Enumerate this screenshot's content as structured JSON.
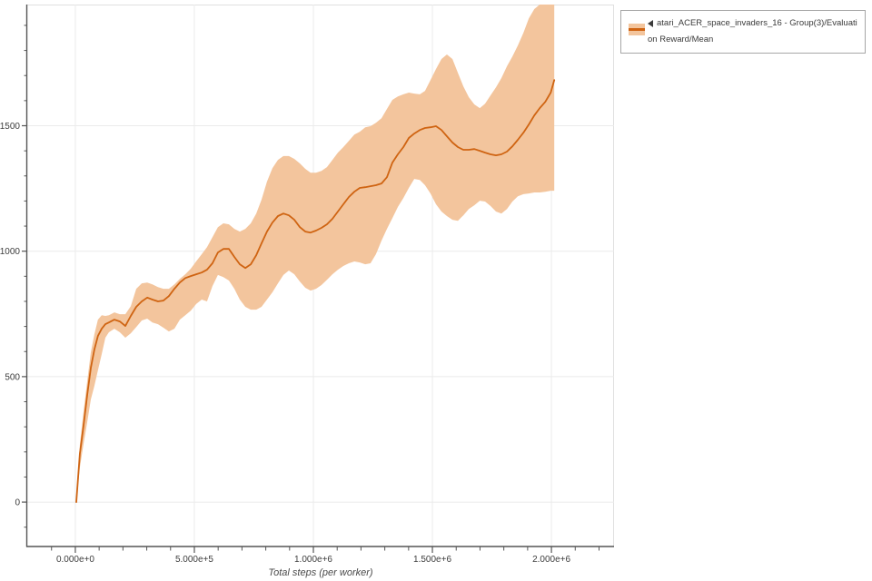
{
  "legend": {
    "lines": [
      "atari_ACER_space_invaders_16 - Group(3)/Evaluati",
      "on Reward/Mean"
    ],
    "marker_icon": "left-triangle"
  },
  "colors": {
    "line": "#cf6412",
    "band": "#f3c59d",
    "grid": "#ebebeb",
    "plot_border": "#e0e0e0",
    "axis_spine": "#555555",
    "tick_text": "#3c3c3c",
    "legend_border": "#a6a6a6"
  },
  "chart_data": {
    "type": "line",
    "title": "",
    "xlabel": "Total steps (per worker)",
    "ylabel": "",
    "grid": true,
    "legend_position": "top-right",
    "xlim": [
      -202000,
      2263000
    ],
    "ylim": [
      -177,
      1983
    ],
    "x_ticks": [
      0,
      500000,
      1000000,
      1500000,
      2000000
    ],
    "x_tick_labels": [
      "0.000e+0",
      "5.000e+5",
      "1.000e+6",
      "1.500e+6",
      "2.000e+6"
    ],
    "x_minor_ticks": [
      -100000,
      100000,
      200000,
      300000,
      400000,
      600000,
      700000,
      800000,
      900000,
      1100000,
      1200000,
      1300000,
      1400000,
      1600000,
      1700000,
      1800000,
      1900000,
      2100000,
      2200000
    ],
    "y_ticks": [
      0,
      500,
      1000,
      1500
    ],
    "y_tick_labels": [
      "0",
      "500",
      "1000",
      "1500"
    ],
    "y_minor_ticks": [
      -100,
      100,
      200,
      300,
      400,
      600,
      700,
      800,
      900,
      1100,
      1200,
      1300,
      1400,
      1600,
      1700,
      1800,
      1900
    ],
    "series": [
      {
        "name": "atari_ACER_space_invaders_16 - Group(3)/Evaluation Reward/Mean",
        "x": [
          4000,
          19000,
          34000,
          50000,
          65000,
          80000,
          95000,
          111000,
          126000,
          141000,
          164000,
          187000,
          210000,
          233000,
          256000,
          279000,
          302000,
          324000,
          347000,
          370000,
          393000,
          416000,
          439000,
          462000,
          485000,
          508000,
          531000,
          553000,
          576000,
          599000,
          622000,
          645000,
          668000,
          691000,
          714000,
          737000,
          760000,
          782000,
          805000,
          828000,
          851000,
          874000,
          897000,
          920000,
          943000,
          966000,
          988000,
          1011000,
          1034000,
          1057000,
          1080000,
          1103000,
          1126000,
          1149000,
          1172000,
          1195000,
          1218000,
          1240000,
          1263000,
          1286000,
          1309000,
          1332000,
          1355000,
          1378000,
          1401000,
          1424000,
          1447000,
          1469000,
          1492000,
          1515000,
          1538000,
          1561000,
          1584000,
          1607000,
          1630000,
          1653000,
          1676000,
          1699000,
          1721000,
          1744000,
          1767000,
          1790000,
          1813000,
          1836000,
          1859000,
          1882000,
          1905000,
          1928000,
          1951000,
          1974000,
          1997000,
          2012000
        ],
        "mean": [
          0,
          192,
          300,
          427,
          535,
          608,
          662,
          691,
          709,
          716,
          727,
          720,
          702,
          742,
          778,
          800,
          815,
          807,
          800,
          803,
          821,
          850,
          875,
          893,
          901,
          908,
          915,
          926,
          952,
          995,
          1009,
          1009,
          977,
          948,
          933,
          948,
          984,
          1031,
          1078,
          1114,
          1140,
          1150,
          1143,
          1125,
          1096,
          1078,
          1074,
          1082,
          1093,
          1107,
          1129,
          1158,
          1187,
          1216,
          1237,
          1252,
          1255,
          1259,
          1263,
          1270,
          1295,
          1353,
          1386,
          1415,
          1451,
          1469,
          1483,
          1491,
          1494,
          1498,
          1483,
          1458,
          1433,
          1415,
          1404,
          1404,
          1407,
          1400,
          1393,
          1386,
          1382,
          1386,
          1397,
          1418,
          1444,
          1472,
          1505,
          1541,
          1570,
          1595,
          1632,
          1682
        ],
        "band_upper": [
          0,
          228,
          355,
          481,
          597,
          669,
          727,
          745,
          742,
          745,
          756,
          749,
          749,
          781,
          850,
          872,
          875,
          868,
          857,
          850,
          850,
          868,
          890,
          908,
          930,
          960,
          988,
          1016,
          1056,
          1096,
          1111,
          1107,
          1089,
          1078,
          1089,
          1111,
          1150,
          1205,
          1277,
          1331,
          1364,
          1379,
          1379,
          1368,
          1350,
          1328,
          1313,
          1313,
          1320,
          1335,
          1364,
          1393,
          1415,
          1440,
          1465,
          1476,
          1494,
          1498,
          1512,
          1530,
          1567,
          1603,
          1617,
          1625,
          1632,
          1628,
          1625,
          1639,
          1682,
          1726,
          1766,
          1784,
          1766,
          1711,
          1657,
          1614,
          1585,
          1570,
          1588,
          1621,
          1653,
          1690,
          1737,
          1776,
          1820,
          1870,
          1928,
          1965,
          1983,
          1983,
          1983,
          1983
        ],
        "band_lower": [
          0,
          137,
          228,
          318,
          409,
          463,
          525,
          590,
          655,
          677,
          691,
          677,
          655,
          673,
          698,
          724,
          731,
          716,
          709,
          695,
          680,
          691,
          727,
          745,
          763,
          790,
          807,
          800,
          861,
          905,
          897,
          883,
          850,
          807,
          778,
          767,
          767,
          778,
          807,
          836,
          872,
          905,
          923,
          908,
          879,
          854,
          843,
          850,
          865,
          886,
          908,
          926,
          941,
          952,
          959,
          955,
          948,
          952,
          988,
          1042,
          1089,
          1132,
          1176,
          1212,
          1252,
          1288,
          1284,
          1263,
          1230,
          1187,
          1158,
          1140,
          1125,
          1121,
          1143,
          1168,
          1183,
          1201,
          1198,
          1180,
          1158,
          1150,
          1168,
          1198,
          1219,
          1227,
          1230,
          1234,
          1234,
          1237,
          1241,
          1241
        ]
      }
    ]
  }
}
